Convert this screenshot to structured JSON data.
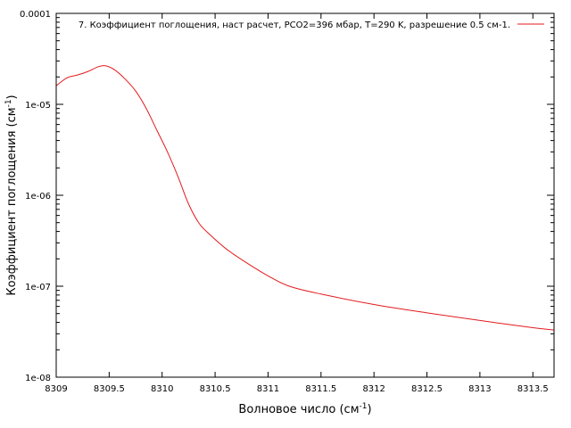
{
  "chart_data": {
    "type": "line",
    "title": "",
    "xlabel": "Волновое число (см",
    "xlabel_sup": "-1",
    "xlabel_suffix": ")",
    "ylabel": "Коэффициент поглощения (см",
    "ylabel_sup": "-1",
    "ylabel_suffix": ")",
    "xlim": [
      8309,
      8313.7
    ],
    "ylim": [
      1e-08,
      0.0001
    ],
    "yscale": "log",
    "grid": false,
    "legend_position": "top-right",
    "x_ticks": [
      {
        "value": 8309,
        "label": "8309"
      },
      {
        "value": 8309.5,
        "label": "8309.5"
      },
      {
        "value": 8310,
        "label": "8310"
      },
      {
        "value": 8310.5,
        "label": "8310.5"
      },
      {
        "value": 8311,
        "label": "8311"
      },
      {
        "value": 8311.5,
        "label": "8311.5"
      },
      {
        "value": 8312,
        "label": "8312"
      },
      {
        "value": 8312.5,
        "label": "8312.5"
      },
      {
        "value": 8313,
        "label": "8313"
      },
      {
        "value": 8313.5,
        "label": "8313.5"
      }
    ],
    "y_ticks": [
      {
        "value": 0.0001,
        "label": "0.0001"
      },
      {
        "value": 1e-05,
        "label": "1e-05"
      },
      {
        "value": 1e-06,
        "label": "1e-06"
      },
      {
        "value": 1e-07,
        "label": "1e-07"
      },
      {
        "value": 1e-08,
        "label": "1e-08"
      }
    ],
    "series": [
      {
        "name": "7. Коэффициент поглощения, наст расчет, PCO2=396 мбар, T=290 K, разрешение 0.5 см-1.",
        "color": "#e41a1c",
        "x": [
          8309.0,
          8309.1,
          8309.2,
          8309.3,
          8309.4,
          8309.47,
          8309.55,
          8309.65,
          8309.75,
          8309.85,
          8309.95,
          8310.05,
          8310.15,
          8310.25,
          8310.35,
          8310.45,
          8310.6,
          8310.8,
          8311.0,
          8311.2,
          8311.5,
          8312.0,
          8312.5,
          8313.0,
          8313.5,
          8313.7
        ],
        "y": [
          1.6e-05,
          1.95e-05,
          2.1e-05,
          2.3e-05,
          2.6e-05,
          2.65e-05,
          2.4e-05,
          1.9e-05,
          1.4e-05,
          9e-06,
          5.2e-06,
          3e-06,
          1.6e-06,
          8e-07,
          4.9e-07,
          3.7e-07,
          2.6e-07,
          1.8e-07,
          1.3e-07,
          1e-07,
          8.2e-08,
          6.3e-08,
          5.1e-08,
          4.2e-08,
          3.5e-08,
          3.3e-08
        ]
      }
    ]
  }
}
